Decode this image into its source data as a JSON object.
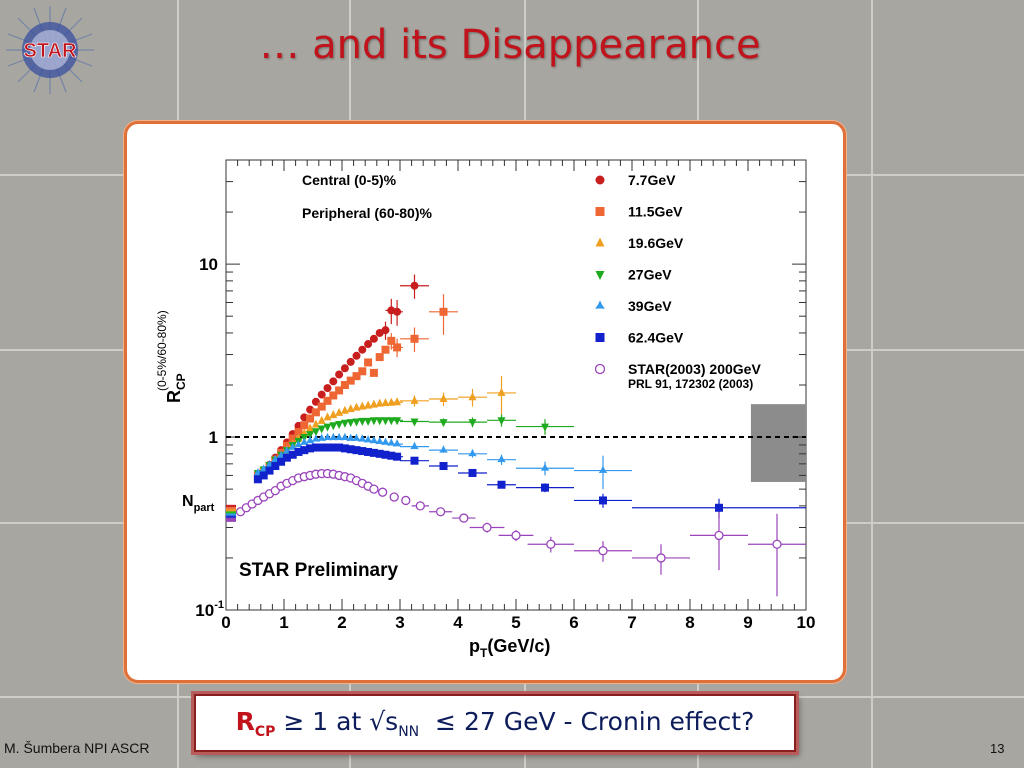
{
  "slide": {
    "title": "… and its Disappearance",
    "logo_text": "STAR",
    "author": "M. Šumbera NPI ASCR",
    "page_number": "13",
    "note": {
      "rcp": "R",
      "rcp_sub": "CP",
      "geq": "≥ 1 at √s",
      "nn_sub": "NN",
      "rest": "≤ 27 GeV   - Cronin effect?"
    },
    "colors": {
      "title": "#c0131c",
      "frame": "#e0703a",
      "note_text": "#0d1c5a"
    }
  },
  "chart_data": {
    "type": "scatter",
    "title": "",
    "ylabel_main": "R",
    "ylabel_sub": "CP",
    "ylabel_note": "(0-5%/60-80%)",
    "xlabel_main": "p",
    "xlabel_sub": "T",
    "xlabel_unit": "(GeV/c)",
    "xlim": [
      0,
      10
    ],
    "ylim": [
      0.1,
      40
    ],
    "yscale": "log",
    "x_ticks": [
      "0",
      "1",
      "2",
      "3",
      "4",
      "5",
      "6",
      "7",
      "8",
      "9",
      "10"
    ],
    "y_ticks": [
      {
        "value": 0.1,
        "label": "10",
        "sup": "-1"
      },
      {
        "value": 1,
        "label": "1",
        "sup": ""
      },
      {
        "value": 10,
        "label": "10",
        "sup": ""
      }
    ],
    "annotations": {
      "central": "Central (0-5)%",
      "peripheral": "Peripheral (60-80)%",
      "preliminary": "STAR Preliminary",
      "npart_main": "N",
      "npart_sub": "part",
      "ref": "PRL 91, 172302 (2003)"
    },
    "unity_line": 1,
    "systematic_box": {
      "x": [
        9.05,
        10
      ],
      "y": [
        0.55,
        1.55
      ],
      "color": "#8c8c8c"
    },
    "npart_bands": [
      {
        "color": "#cc2222",
        "value": 0.395
      },
      {
        "color": "#ee7744",
        "value": 0.383
      },
      {
        "color": "#ee9922",
        "value": 0.372
      },
      {
        "color": "#22bb22",
        "value": 0.362
      },
      {
        "color": "#3399ee",
        "value": 0.352
      },
      {
        "color": "#2233cc",
        "value": 0.342
      },
      {
        "color": "#9944bb",
        "value": 0.332
      }
    ],
    "legend_position": "top-right",
    "series": [
      {
        "name": "7.7GeV",
        "color": "#c81e1e",
        "marker": "circle",
        "x": [
          0.55,
          0.65,
          0.75,
          0.85,
          0.95,
          1.05,
          1.15,
          1.25,
          1.35,
          1.45,
          1.55,
          1.65,
          1.75,
          1.85,
          1.95,
          2.05,
          2.15,
          2.25,
          2.35,
          2.45,
          2.55,
          2.65,
          2.75,
          2.85,
          2.95,
          3.25
        ],
        "y": [
          0.6,
          0.64,
          0.69,
          0.76,
          0.84,
          0.93,
          1.04,
          1.16,
          1.3,
          1.44,
          1.6,
          1.76,
          1.92,
          2.1,
          2.3,
          2.5,
          2.72,
          2.95,
          3.2,
          3.45,
          3.7,
          4.0,
          4.15,
          5.4,
          5.3,
          7.5
        ],
        "xerr": [
          0,
          0,
          0,
          0,
          0,
          0,
          0,
          0,
          0,
          0,
          0,
          0,
          0,
          0,
          0,
          0,
          0,
          0,
          0,
          0,
          0,
          0,
          0,
          0.1,
          0.1,
          0.25
        ],
        "yerr": [
          0,
          0,
          0,
          0,
          0,
          0,
          0,
          0,
          0,
          0,
          0,
          0,
          0,
          0,
          0,
          0,
          0,
          0,
          0,
          0,
          0,
          0,
          0.5,
          0.9,
          0.9,
          1.2
        ]
      },
      {
        "name": "11.5GeV",
        "color": "#ee6633",
        "marker": "square",
        "x": [
          0.55,
          0.65,
          0.75,
          0.85,
          0.95,
          1.05,
          1.15,
          1.25,
          1.35,
          1.45,
          1.55,
          1.65,
          1.75,
          1.85,
          1.95,
          2.05,
          2.15,
          2.25,
          2.35,
          2.45,
          2.55,
          2.65,
          2.75,
          2.85,
          2.95,
          3.25,
          3.75
        ],
        "y": [
          0.6,
          0.63,
          0.68,
          0.74,
          0.81,
          0.89,
          0.98,
          1.07,
          1.17,
          1.28,
          1.39,
          1.5,
          1.62,
          1.74,
          1.86,
          2.0,
          2.12,
          2.25,
          2.4,
          2.7,
          2.35,
          2.9,
          3.2,
          3.6,
          3.3,
          3.7,
          5.3
        ],
        "xerr": [
          0,
          0,
          0,
          0,
          0,
          0,
          0,
          0,
          0,
          0,
          0,
          0,
          0,
          0,
          0,
          0,
          0,
          0,
          0,
          0,
          0,
          0,
          0,
          0,
          0.1,
          0.25,
          0.25
        ],
        "yerr": [
          0,
          0,
          0,
          0,
          0,
          0,
          0,
          0,
          0,
          0,
          0,
          0,
          0,
          0,
          0,
          0,
          0,
          0,
          0,
          0,
          0,
          0,
          0,
          0.4,
          0.4,
          0.6,
          1.4
        ]
      },
      {
        "name": "19.6GeV",
        "color": "#f0a020",
        "marker": "triangle-up",
        "x": [
          0.55,
          0.65,
          0.75,
          0.85,
          0.95,
          1.05,
          1.15,
          1.25,
          1.35,
          1.45,
          1.55,
          1.65,
          1.75,
          1.85,
          1.95,
          2.05,
          2.15,
          2.25,
          2.35,
          2.45,
          2.55,
          2.65,
          2.75,
          2.85,
          2.95,
          3.25,
          3.75,
          4.25,
          4.75
        ],
        "y": [
          0.6,
          0.63,
          0.67,
          0.72,
          0.78,
          0.84,
          0.91,
          0.98,
          1.05,
          1.12,
          1.18,
          1.24,
          1.3,
          1.34,
          1.38,
          1.42,
          1.45,
          1.48,
          1.5,
          1.52,
          1.54,
          1.56,
          1.57,
          1.58,
          1.59,
          1.62,
          1.66,
          1.7,
          1.8
        ],
        "xerr": [
          0,
          0,
          0,
          0,
          0,
          0,
          0,
          0,
          0,
          0,
          0,
          0,
          0,
          0,
          0,
          0,
          0,
          0,
          0,
          0,
          0,
          0,
          0,
          0,
          0.1,
          0.25,
          0.25,
          0.25,
          0.25
        ],
        "yerr": [
          0,
          0,
          0,
          0,
          0,
          0,
          0,
          0,
          0,
          0,
          0,
          0,
          0,
          0,
          0,
          0,
          0,
          0,
          0,
          0,
          0,
          0,
          0,
          0,
          0,
          0.12,
          0.15,
          0.2,
          0.45
        ]
      },
      {
        "name": "27GeV",
        "color": "#1eaa1e",
        "marker": "triangle-down",
        "x": [
          0.55,
          0.65,
          0.75,
          0.85,
          0.95,
          1.05,
          1.15,
          1.25,
          1.35,
          1.45,
          1.55,
          1.65,
          1.75,
          1.85,
          1.95,
          2.05,
          2.15,
          2.25,
          2.35,
          2.45,
          2.55,
          2.65,
          2.75,
          2.85,
          2.95,
          3.25,
          3.75,
          4.25,
          4.75,
          5.5
        ],
        "y": [
          0.62,
          0.65,
          0.69,
          0.74,
          0.79,
          0.84,
          0.9,
          0.95,
          1.0,
          1.04,
          1.08,
          1.12,
          1.15,
          1.17,
          1.19,
          1.21,
          1.22,
          1.23,
          1.24,
          1.24,
          1.25,
          1.25,
          1.25,
          1.25,
          1.25,
          1.23,
          1.22,
          1.22,
          1.25,
          1.15
        ],
        "xerr": [
          0,
          0,
          0,
          0,
          0,
          0,
          0,
          0,
          0,
          0,
          0,
          0,
          0,
          0,
          0,
          0,
          0,
          0,
          0,
          0,
          0,
          0,
          0,
          0,
          0.1,
          0.25,
          0.25,
          0.25,
          0.25,
          0.5
        ],
        "yerr": [
          0,
          0,
          0,
          0,
          0,
          0,
          0,
          0,
          0,
          0,
          0,
          0,
          0,
          0,
          0,
          0,
          0,
          0,
          0,
          0,
          0,
          0,
          0,
          0,
          0,
          0.05,
          0.06,
          0.08,
          0.1,
          0.12
        ]
      },
      {
        "name": "39GeV",
        "color": "#3399ee",
        "marker": "star",
        "x": [
          0.55,
          0.65,
          0.75,
          0.85,
          0.95,
          1.05,
          1.15,
          1.25,
          1.35,
          1.45,
          1.55,
          1.65,
          1.75,
          1.85,
          1.95,
          2.05,
          2.15,
          2.25,
          2.35,
          2.45,
          2.55,
          2.65,
          2.75,
          2.85,
          2.95,
          3.25,
          3.75,
          4.25,
          4.75,
          5.5,
          6.5
        ],
        "y": [
          0.62,
          0.65,
          0.69,
          0.74,
          0.78,
          0.83,
          0.87,
          0.9,
          0.93,
          0.95,
          0.97,
          0.98,
          0.99,
          0.99,
          0.99,
          0.99,
          0.98,
          0.98,
          0.97,
          0.96,
          0.95,
          0.94,
          0.93,
          0.92,
          0.91,
          0.88,
          0.84,
          0.8,
          0.74,
          0.66,
          0.64
        ],
        "xerr": [
          0,
          0,
          0,
          0,
          0,
          0,
          0,
          0,
          0,
          0,
          0,
          0,
          0,
          0,
          0,
          0,
          0,
          0,
          0,
          0,
          0,
          0,
          0,
          0,
          0.1,
          0.25,
          0.25,
          0.25,
          0.25,
          0.5,
          0.5
        ],
        "yerr": [
          0,
          0,
          0,
          0,
          0,
          0,
          0,
          0,
          0,
          0,
          0,
          0,
          0,
          0,
          0,
          0,
          0,
          0,
          0,
          0,
          0,
          0,
          0,
          0,
          0,
          0.03,
          0.03,
          0.04,
          0.05,
          0.06,
          0.14
        ]
      },
      {
        "name": "62.4GeV",
        "color": "#1122cc",
        "marker": "square",
        "x": [
          0.55,
          0.65,
          0.75,
          0.85,
          0.95,
          1.05,
          1.15,
          1.25,
          1.35,
          1.45,
          1.55,
          1.65,
          1.75,
          1.85,
          1.95,
          2.05,
          2.15,
          2.25,
          2.35,
          2.45,
          2.55,
          2.65,
          2.75,
          2.85,
          2.95,
          3.25,
          3.75,
          4.25,
          4.75,
          5.5,
          6.5,
          8.5
        ],
        "y": [
          0.57,
          0.6,
          0.64,
          0.68,
          0.72,
          0.76,
          0.79,
          0.82,
          0.84,
          0.86,
          0.87,
          0.87,
          0.87,
          0.87,
          0.87,
          0.86,
          0.85,
          0.84,
          0.83,
          0.82,
          0.81,
          0.8,
          0.79,
          0.78,
          0.77,
          0.73,
          0.68,
          0.62,
          0.53,
          0.51,
          0.43,
          0.39
        ],
        "xerr": [
          0,
          0,
          0,
          0,
          0,
          0,
          0,
          0,
          0,
          0,
          0,
          0,
          0,
          0,
          0,
          0,
          0,
          0,
          0,
          0,
          0,
          0,
          0,
          0,
          0.1,
          0.25,
          0.25,
          0.25,
          0.25,
          0.5,
          0.5,
          1.5
        ],
        "yerr": [
          0,
          0,
          0,
          0,
          0,
          0,
          0,
          0,
          0,
          0,
          0,
          0,
          0,
          0,
          0,
          0,
          0,
          0,
          0,
          0,
          0,
          0,
          0,
          0,
          0,
          0.02,
          0.02,
          0.02,
          0.02,
          0.03,
          0.04,
          0.05
        ]
      },
      {
        "name": "STAR(2003) 200GeV",
        "color": "#9944bb",
        "marker": "open-circle",
        "x": [
          0.25,
          0.35,
          0.45,
          0.55,
          0.65,
          0.75,
          0.85,
          0.95,
          1.05,
          1.15,
          1.25,
          1.35,
          1.45,
          1.55,
          1.65,
          1.75,
          1.85,
          1.95,
          2.05,
          2.15,
          2.25,
          2.35,
          2.45,
          2.55,
          2.7,
          2.9,
          3.1,
          3.35,
          3.7,
          4.1,
          4.5,
          5.0,
          5.6,
          6.5,
          7.5,
          8.5,
          9.5
        ],
        "y": [
          0.37,
          0.39,
          0.41,
          0.43,
          0.45,
          0.47,
          0.49,
          0.52,
          0.54,
          0.56,
          0.58,
          0.59,
          0.6,
          0.61,
          0.615,
          0.615,
          0.61,
          0.6,
          0.59,
          0.58,
          0.56,
          0.54,
          0.52,
          0.5,
          0.48,
          0.45,
          0.43,
          0.4,
          0.37,
          0.34,
          0.3,
          0.27,
          0.24,
          0.22,
          0.2,
          0.27,
          0.24
        ],
        "xerr": [
          0,
          0,
          0,
          0,
          0,
          0,
          0,
          0,
          0,
          0,
          0,
          0,
          0,
          0,
          0,
          0,
          0,
          0,
          0,
          0,
          0,
          0,
          0,
          0,
          0,
          0,
          0,
          0.15,
          0.2,
          0.2,
          0.3,
          0.3,
          0.4,
          0.5,
          0.5,
          0.5,
          0.5
        ],
        "yerr": [
          0,
          0,
          0,
          0,
          0,
          0,
          0,
          0,
          0,
          0,
          0,
          0,
          0,
          0,
          0,
          0,
          0,
          0,
          0,
          0,
          0,
          0,
          0,
          0,
          0,
          0,
          0,
          0.01,
          0.01,
          0.015,
          0.02,
          0.02,
          0.025,
          0.03,
          0.04,
          0.1,
          0.12
        ]
      }
    ]
  }
}
